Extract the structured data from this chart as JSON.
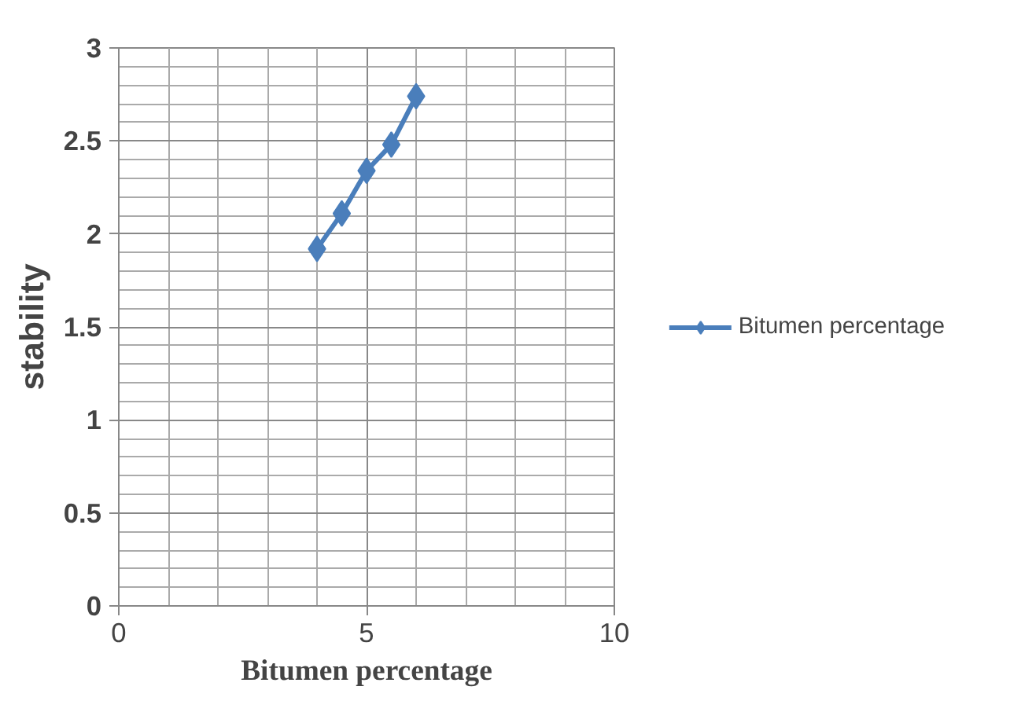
{
  "chart_data": {
    "type": "line",
    "xlabel": "Bitumen percentage",
    "ylabel": "stability",
    "x": [
      4,
      4.5,
      5,
      5.5,
      6
    ],
    "series": [
      {
        "name": "Bitumen percentage",
        "color": "#4a7ebb",
        "values": [
          1.92,
          2.11,
          2.34,
          2.48,
          2.74
        ]
      }
    ],
    "xlim": [
      0,
      10
    ],
    "xticks": [
      0,
      5,
      10
    ],
    "ylim": [
      0,
      3
    ],
    "yticks": [
      0,
      0.5,
      1,
      1.5,
      2,
      2.5,
      3
    ],
    "grid": true,
    "legend": "right",
    "marker": "diamond",
    "line_style": "solid"
  }
}
